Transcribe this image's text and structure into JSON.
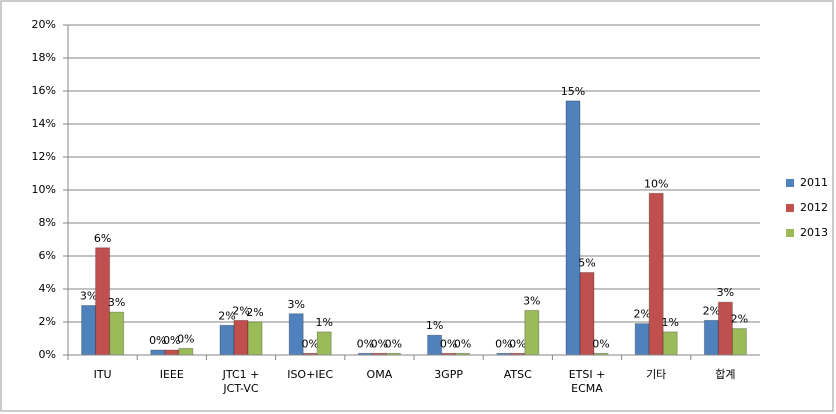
{
  "chart_data": {
    "type": "bar",
    "categories": [
      "ITU",
      "IEEE",
      "JTC1 +\nJCT-VC",
      "ISO+IEC",
      "OMA",
      "3GPP",
      "ATSC",
      "ETSI +\nECMA",
      "기타",
      "합계"
    ],
    "series": [
      {
        "name": "2011",
        "color": "#4f81bd",
        "values": [
          3.0,
          0.3,
          1.8,
          2.5,
          0.1,
          1.2,
          0.1,
          15.4,
          1.9,
          2.1
        ],
        "value_labels": [
          "3%",
          "0%",
          "2%",
          "3%",
          "0%",
          "1%",
          "0%",
          "15%",
          "2%",
          "2%"
        ]
      },
      {
        "name": "2012",
        "color": "#c0504d",
        "values": [
          6.5,
          0.3,
          2.1,
          0.1,
          0.1,
          0.1,
          0.1,
          5.0,
          9.8,
          3.2
        ],
        "value_labels": [
          "6%",
          "0%",
          "2%",
          "0%",
          "0%",
          "0%",
          "0%",
          "5%",
          "10%",
          "3%"
        ]
      },
      {
        "name": "2013",
        "color": "#9bbb59",
        "values": [
          2.6,
          0.4,
          2.0,
          1.4,
          0.1,
          0.1,
          2.7,
          0.1,
          1.4,
          1.6
        ],
        "value_labels": [
          "3%",
          "0%",
          "2%",
          "1%",
          "0%",
          "0%",
          "3%",
          "0%",
          "1%",
          "2%"
        ]
      }
    ],
    "ylim": [
      0,
      20
    ],
    "yticks": [
      {
        "value": 0,
        "label": "0%"
      },
      {
        "value": 2,
        "label": "2%"
      },
      {
        "value": 4,
        "label": "4%"
      },
      {
        "value": 6,
        "label": "6%"
      },
      {
        "value": 8,
        "label": "8%"
      },
      {
        "value": 10,
        "label": "10%"
      },
      {
        "value": 12,
        "label": "12%"
      },
      {
        "value": 14,
        "label": "14%"
      },
      {
        "value": 16,
        "label": "16%"
      },
      {
        "value": 18,
        "label": "18%"
      },
      {
        "value": 20,
        "label": "20%"
      }
    ],
    "grid": true,
    "legend": "right"
  }
}
